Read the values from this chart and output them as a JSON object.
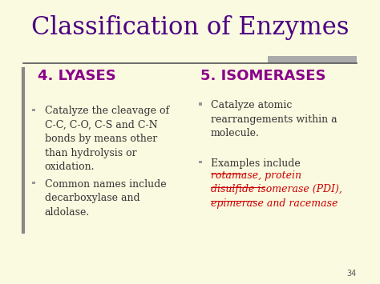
{
  "title": "Classification of Enzymes",
  "title_color": "#4B0082",
  "title_fontsize": 22,
  "bg_color": "#FAFAE0",
  "left_heading": "4. LYASES",
  "right_heading": "5. ISOMERASES",
  "heading_color": "#8B008B",
  "heading_fontsize": 13,
  "left_bullets": [
    "Catalyze the cleavage of\nC-C, C-O, C-S and C-N\nbonds by means other\nthan hydrolysis or\noxidation.",
    "Common names include\ndecarboxylase and\naldolase."
  ],
  "right_bullet1": "Catalyze atomic\nrearrangements within a\nmolecule.",
  "right_bullet2_prefix": "Examples include",
  "right_bullet2_link": "rotamase, protein\ndisulfide isomerase (PDI),\nepimerase and racemase",
  "bullet_color": "#333333",
  "link_color": "#CC0000",
  "bullet_fontsize": 9,
  "bullet_square_color": "#999999",
  "left_bar_color": "#888888",
  "page_num": "34",
  "header_line_color": "#555555",
  "deco_rect_color": "#AAAAAA"
}
